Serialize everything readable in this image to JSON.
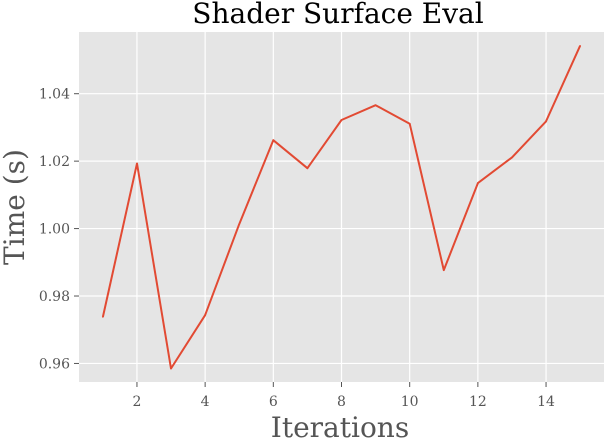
{
  "chart_data": {
    "type": "line",
    "title": "Shader Surface Eval",
    "xlabel": "Iterations",
    "ylabel": "Time (s)",
    "x": [
      1,
      2,
      3,
      4,
      5,
      6,
      7,
      8,
      9,
      10,
      11,
      12,
      13,
      14,
      15
    ],
    "series": [
      {
        "values": [
          0.9738,
          1.0193,
          0.9585,
          0.9743,
          1.0013,
          1.0262,
          1.0179,
          1.0322,
          1.0366,
          1.0311,
          0.9877,
          1.0135,
          1.0211,
          1.0318,
          1.0542
        ]
      }
    ],
    "xlim": [
      0.3,
      15.7
    ],
    "ylim": [
      0.9545,
      1.0583
    ],
    "xticks": [
      2,
      4,
      6,
      8,
      10,
      12,
      14
    ],
    "xtick_labels": [
      "2",
      "4",
      "6",
      "8",
      "10",
      "12",
      "14"
    ],
    "yticks": [
      0.96,
      0.98,
      1.0,
      1.02,
      1.04
    ],
    "ytick_labels": [
      "0.96",
      "0.98",
      "1.00",
      "1.02",
      "1.04"
    ],
    "grid": true,
    "style": "ggplot",
    "colors": {
      "line": "#e24a33",
      "background": "#e5e5e5",
      "grid": "#ffffff",
      "tick_text": "#555555"
    }
  }
}
